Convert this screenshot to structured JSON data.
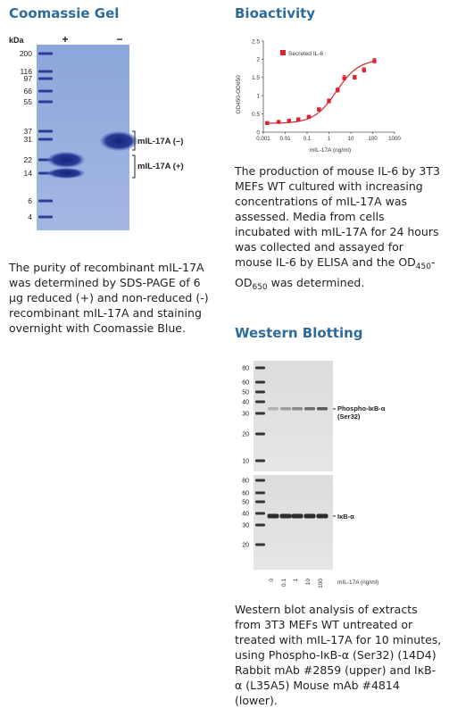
{
  "coomassie": {
    "title": "Coomassie Gel",
    "kda_label": "kDa",
    "lane_plus": "+",
    "lane_minus": "−",
    "markers": [
      "200",
      "116",
      "97",
      "66",
      "55",
      "37",
      "31",
      "22",
      "14",
      "6",
      "4"
    ],
    "band_label_minus": "mIL-17A (–)",
    "band_label_plus": "mIL-17A (+)",
    "caption": "The purity of recombinant mIL-17A was determined by SDS-PAGE of 6 µg reduced (+) and non-reduced (-) recombinant mIL-17A and staining overnight with Coomassie Blue."
  },
  "bioactivity": {
    "title": "Bioactivity",
    "caption_main": "The production of mouse IL-6 by 3T3 MEFs WT cultured with increasing concentrations of mIL-17A was assessed. Media from cells incubated with mIL-17A for 24 hours was collected and assayed for mouse IL-6 by ELISA and the ",
    "caption_od1": "OD",
    "caption_sub1": "450",
    "caption_dash": "-OD",
    "caption_sub2": "650",
    "caption_end": " was determined."
  },
  "chart_data": {
    "type": "scatter",
    "legend": "Secreted IL-6",
    "xlabel": "mIL-17A (ng/ml)",
    "ylabel": "OD450-OD650",
    "x_scale": "log",
    "xlim": [
      0.001,
      1000
    ],
    "ylim": [
      0,
      2.5
    ],
    "x_ticks": [
      "0.001",
      "0.01",
      "0.1",
      "1",
      "10",
      "100",
      "1000"
    ],
    "y_ticks": [
      "0",
      "0.5",
      "1",
      "1.5",
      "2",
      "2.5"
    ],
    "series": [
      {
        "name": "Secreted IL-6",
        "color": "#d9232e",
        "x": [
          0.0015,
          0.005,
          0.015,
          0.04,
          0.12,
          0.35,
          1,
          2.5,
          5,
          15,
          40,
          120
        ],
        "y": [
          0.25,
          0.28,
          0.31,
          0.35,
          0.42,
          0.62,
          0.85,
          1.15,
          1.48,
          1.5,
          1.7,
          1.95
        ],
        "error": [
          0.02,
          0.02,
          0.02,
          0.03,
          0.03,
          0.05,
          0.06,
          0.07,
          0.08,
          0.06,
          0.07,
          0.07
        ]
      }
    ]
  },
  "western": {
    "title": "Western Blotting",
    "upper_markers": [
      "80",
      "60",
      "50",
      "40",
      "30",
      "20",
      "10"
    ],
    "lower_markers": [
      "80",
      "60",
      "50",
      "40",
      "30",
      "20"
    ],
    "upper_label_1": "Phospho-IκB-α",
    "upper_label_2": "(Ser32)",
    "lower_label": "IκB-α",
    "lane_labels": [
      "0",
      "0.1",
      "1",
      "10",
      "100"
    ],
    "lane_axis_label": "mIL-17A (ng/ml)",
    "caption": "Western blot analysis of extracts from 3T3 MEFs WT untreated or treated with mIL-17A for 10 minutes, using Phospho-IκB-α (Ser32) (14D4) Rabbit mAb #2859 (upper) and IκB-α (L35A5) Mouse mAb #4814 (lower)."
  }
}
